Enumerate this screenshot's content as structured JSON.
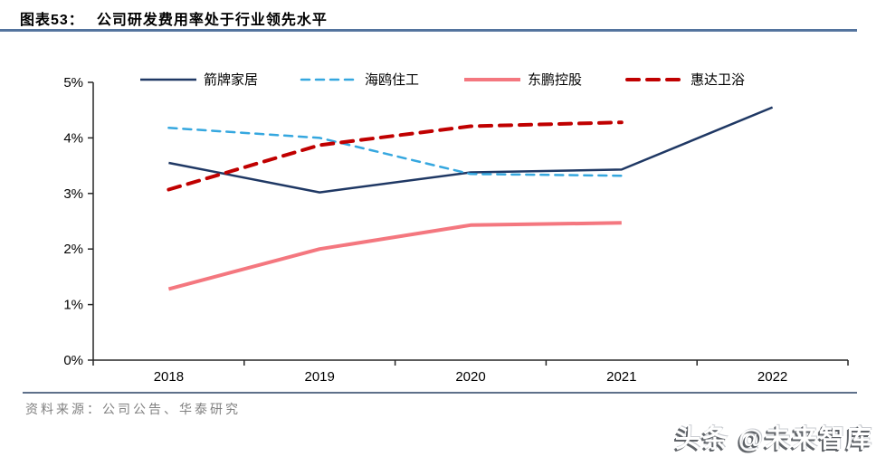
{
  "header": {
    "fig_label": "图表53：",
    "title": "公司研发费用率处于行业领先水平"
  },
  "chart_data": {
    "type": "line",
    "title": "公司研发费用率处于行业领先水平",
    "categories": [
      "2018",
      "2019",
      "2020",
      "2021",
      "2022"
    ],
    "series": [
      {
        "name": "箭牌家居",
        "color": "#1F3864",
        "line_style": "solid",
        "line_width": 2.5,
        "values": [
          3.55,
          3.02,
          3.38,
          3.43,
          4.55
        ]
      },
      {
        "name": "海鸥住工",
        "color": "#35A7DF",
        "line_style": "dashed",
        "line_width": 2.5,
        "values": [
          4.18,
          4.0,
          3.35,
          3.32,
          null
        ]
      },
      {
        "name": "东鹏控股",
        "color": "#F4777F",
        "line_style": "solid",
        "line_width": 4,
        "values": [
          1.28,
          2.0,
          2.43,
          2.47,
          null
        ]
      },
      {
        "name": "惠达卫浴",
        "color": "#C00000",
        "line_style": "dashed",
        "line_width": 4,
        "values": [
          3.07,
          3.87,
          4.21,
          4.28,
          null
        ]
      }
    ],
    "xlabel": "",
    "ylabel": "",
    "ylim": [
      0,
      5
    ],
    "ytick_labels": [
      "0%",
      "1%",
      "2%",
      "3%",
      "4%",
      "5%"
    ],
    "legend_position": "top",
    "grid": false,
    "axis_color": "#262626"
  },
  "source": {
    "text": "资料来源：公司公告、华泰研究"
  },
  "watermark": {
    "text": "头条 @未来智库"
  },
  "colors": {
    "header_rule": "#54749E",
    "source_divider": "#5E708A",
    "source_text": "#808080",
    "title_text": "#000000"
  }
}
